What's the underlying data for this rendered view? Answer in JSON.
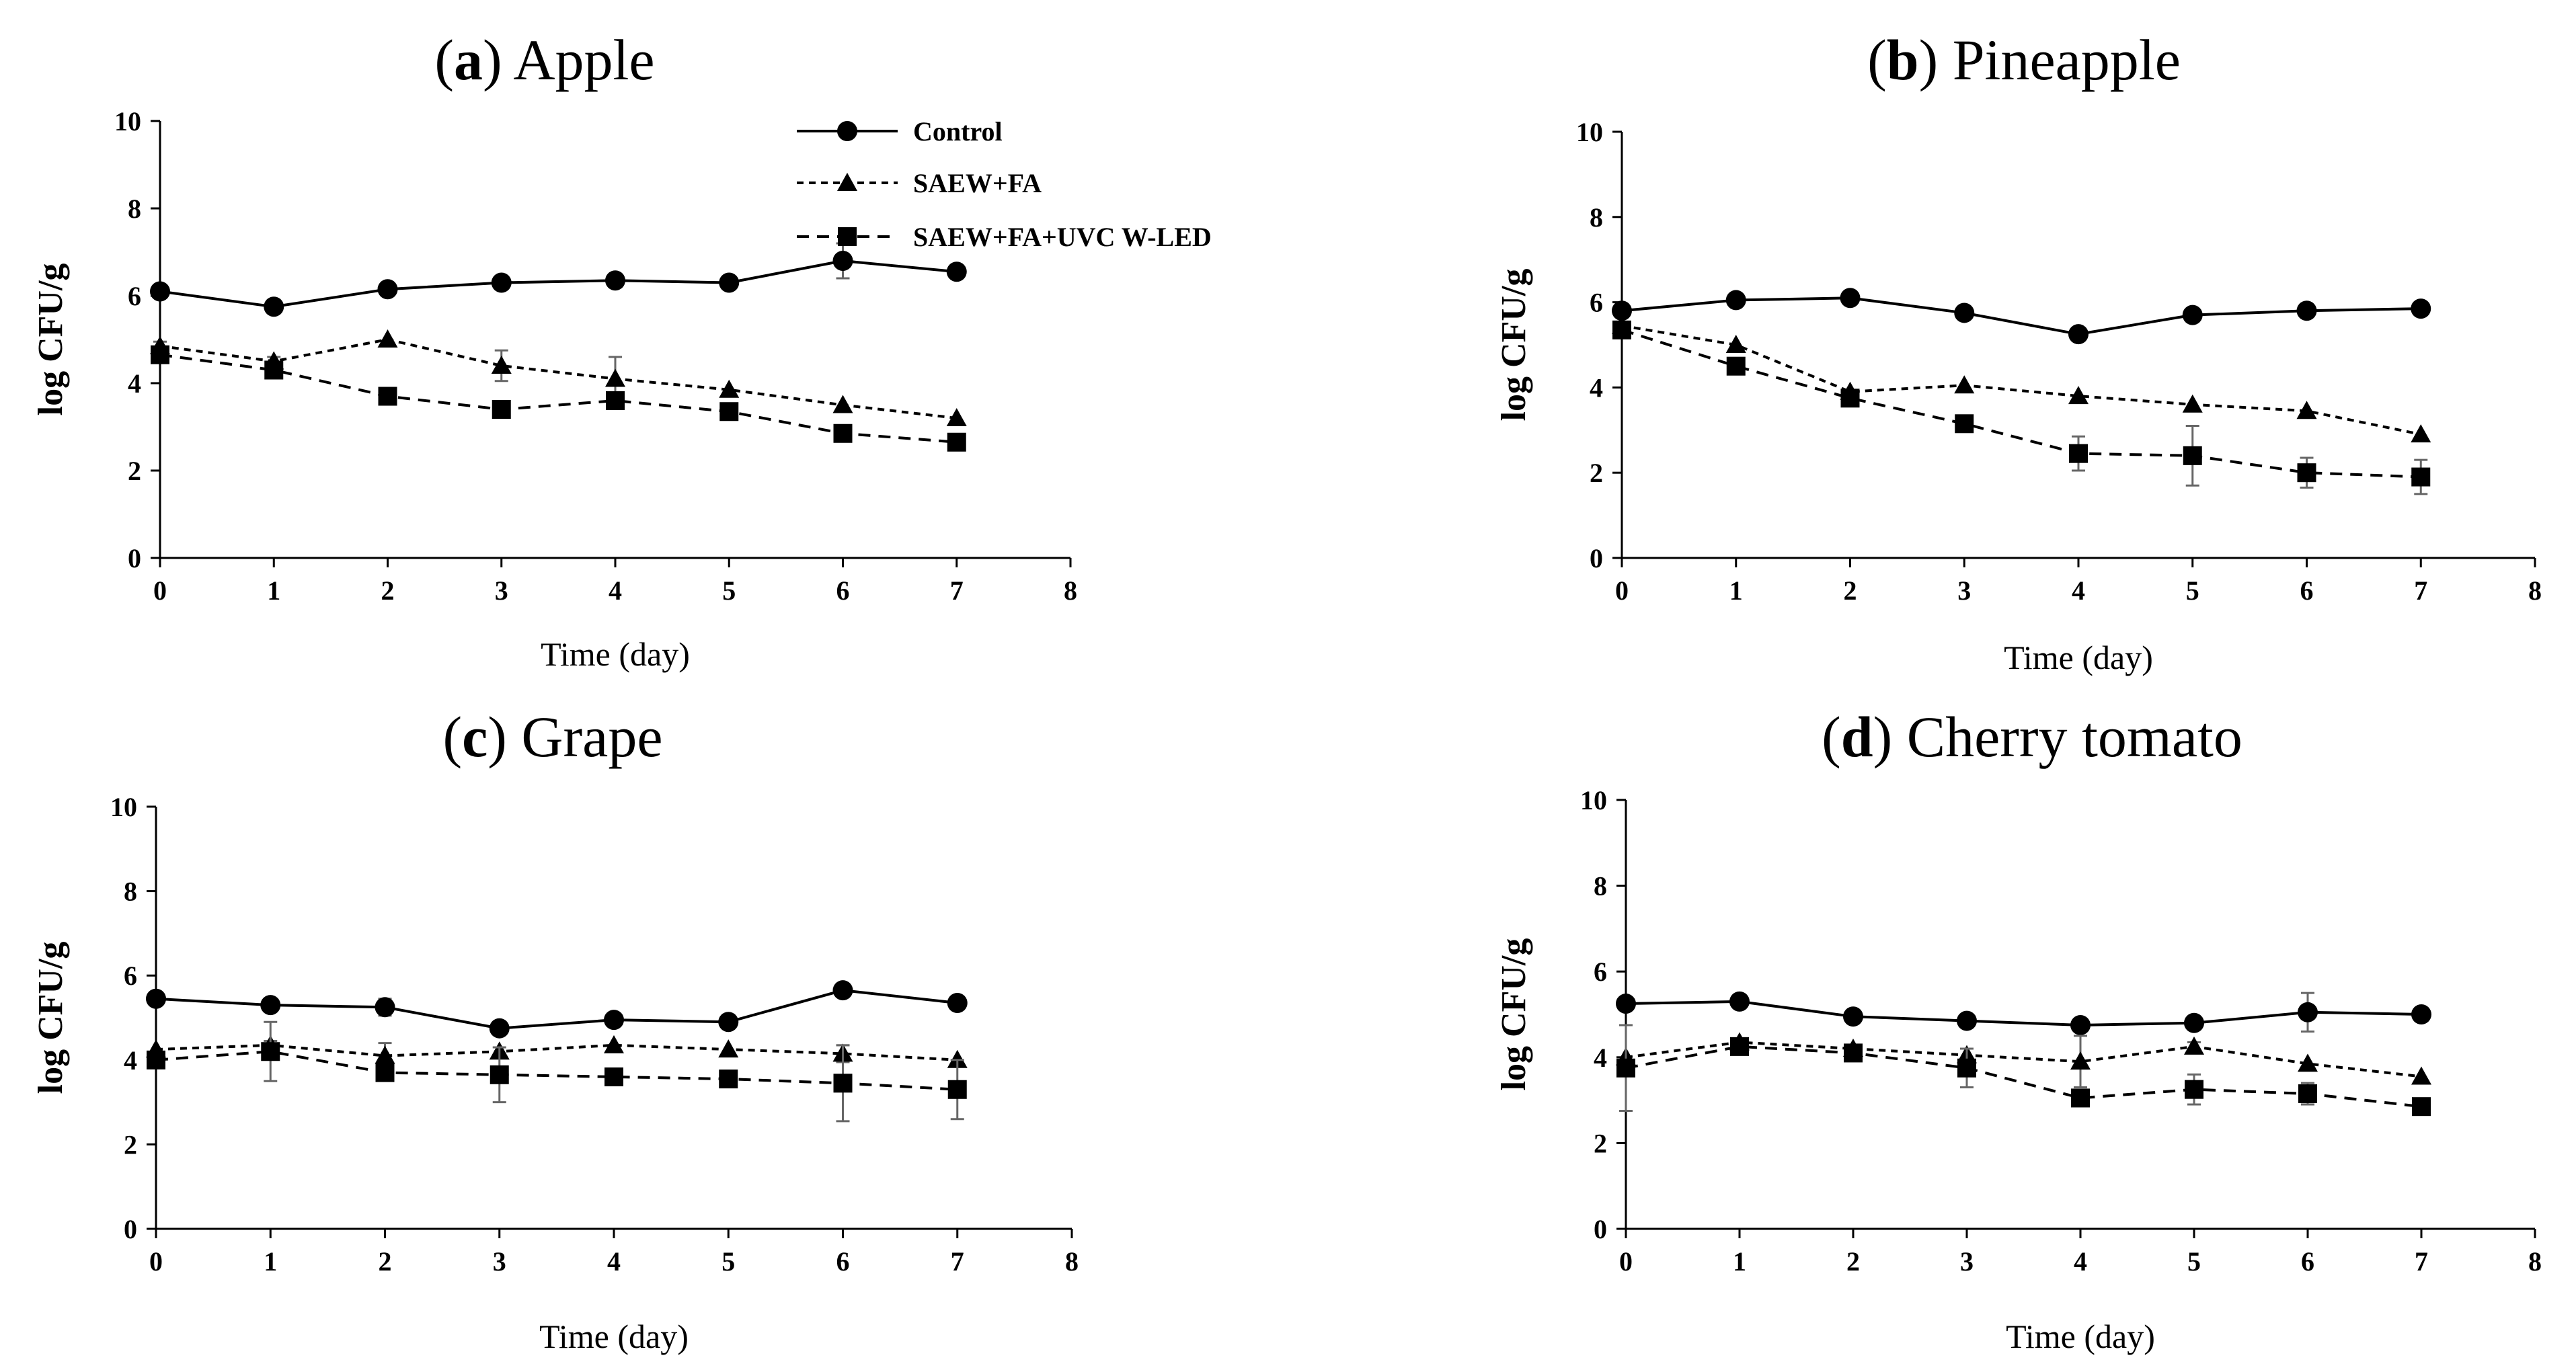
{
  "chart_data": [
    {
      "type": "line",
      "label_letter": "a",
      "title": "Apple",
      "xlabel": "Time (day)",
      "ylabel": "log CFU/g",
      "xlim": [
        0,
        8
      ],
      "ylim": [
        0,
        10
      ],
      "x_ticks": [
        "0",
        "1",
        "2",
        "3",
        "4",
        "5",
        "6",
        "7",
        "8"
      ],
      "y_ticks": [
        "0",
        "2",
        "4",
        "6",
        "8",
        "10"
      ],
      "legend_position": "top-right",
      "x": [
        0,
        1,
        2,
        3,
        4,
        5,
        6,
        7
      ],
      "series": [
        {
          "name": "Control",
          "marker": "circle",
          "line": "solid",
          "values": [
            6.1,
            5.75,
            6.15,
            6.3,
            6.35,
            6.3,
            6.8,
            6.55
          ],
          "errors": [
            0.1,
            0.05,
            0.15,
            0.05,
            0.05,
            0.05,
            0.4,
            0.05
          ]
        },
        {
          "name": "SAEW+FA",
          "marker": "triangle",
          "line": "dashed",
          "values": [
            4.85,
            4.5,
            5.0,
            4.4,
            4.1,
            3.85,
            3.5,
            3.2
          ],
          "errors": [
            0.1,
            0.1,
            0.05,
            0.35,
            0.5,
            0.05,
            0.05,
            0.05
          ]
        },
        {
          "name": "SAEW+FA+UVC W-LED",
          "marker": "square",
          "line": "dashed",
          "values": [
            4.65,
            4.3,
            3.7,
            3.4,
            3.6,
            3.35,
            2.85,
            2.65
          ],
          "errors": [
            0.1,
            0.1,
            0.05,
            0.05,
            0.1,
            0.05,
            0.05,
            0.05
          ]
        }
      ]
    },
    {
      "type": "line",
      "label_letter": "b",
      "title": "Pineapple",
      "xlabel": "Time (day)",
      "ylabel": "log CFU/g",
      "xlim": [
        0,
        8
      ],
      "ylim": [
        0,
        10
      ],
      "x_ticks": [
        "0",
        "1",
        "2",
        "3",
        "4",
        "5",
        "6",
        "7",
        "8"
      ],
      "y_ticks": [
        "0",
        "2",
        "4",
        "6",
        "8",
        "10"
      ],
      "x": [
        0,
        1,
        2,
        3,
        4,
        5,
        6,
        7
      ],
      "series": [
        {
          "name": "Control",
          "marker": "circle",
          "line": "solid",
          "values": [
            5.8,
            6.05,
            6.1,
            5.75,
            5.25,
            5.7,
            5.8,
            5.85
          ],
          "errors": [
            0.05,
            0.05,
            0.05,
            0.05,
            0.05,
            0.05,
            0.05,
            0.05
          ]
        },
        {
          "name": "SAEW+FA",
          "marker": "triangle",
          "line": "dashed",
          "values": [
            5.45,
            5.0,
            3.9,
            4.05,
            3.8,
            3.6,
            3.45,
            2.9
          ],
          "errors": [
            0.05,
            0.05,
            0.05,
            0.05,
            0.05,
            0.05,
            0.05,
            0.05
          ]
        },
        {
          "name": "SAEW+FA+UVC W-LED",
          "marker": "square",
          "line": "dashed",
          "values": [
            5.35,
            4.5,
            3.75,
            3.15,
            2.45,
            2.4,
            2.0,
            1.9
          ],
          "errors": [
            0.05,
            0.1,
            0.1,
            0.15,
            0.4,
            0.7,
            0.35,
            0.4
          ]
        }
      ]
    },
    {
      "type": "line",
      "label_letter": "c",
      "title": "Grape",
      "xlabel": "Time (day)",
      "ylabel": "log CFU/g",
      "xlim": [
        0,
        8
      ],
      "ylim": [
        0,
        10
      ],
      "x_ticks": [
        "0",
        "1",
        "2",
        "3",
        "4",
        "5",
        "6",
        "7",
        "8"
      ],
      "y_ticks": [
        "0",
        "2",
        "4",
        "6",
        "8",
        "10"
      ],
      "x": [
        0,
        1,
        2,
        3,
        4,
        5,
        6,
        7
      ],
      "series": [
        {
          "name": "Control",
          "marker": "circle",
          "line": "solid",
          "values": [
            5.45,
            5.3,
            5.25,
            4.75,
            4.95,
            4.9,
            5.65,
            5.35
          ],
          "errors": [
            0.05,
            0.05,
            0.2,
            0.05,
            0.05,
            0.15,
            0.1,
            0.15
          ]
        },
        {
          "name": "SAEW+FA",
          "marker": "triangle",
          "line": "dashed",
          "values": [
            4.25,
            4.35,
            4.1,
            4.2,
            4.35,
            4.25,
            4.15,
            4.0
          ],
          "errors": [
            0.05,
            0.1,
            0.3,
            0.05,
            0.05,
            0.05,
            0.2,
            0.05
          ]
        },
        {
          "name": "SAEW+FA+UVC W-LED",
          "marker": "square",
          "line": "dashed",
          "values": [
            4.0,
            4.2,
            3.7,
            3.65,
            3.6,
            3.55,
            3.45,
            3.3
          ],
          "errors": [
            0.05,
            0.7,
            0.05,
            0.65,
            0.05,
            0.05,
            0.9,
            0.7
          ]
        }
      ]
    },
    {
      "type": "line",
      "label_letter": "d",
      "title": "Cherry tomato",
      "xlabel": "Time (day)",
      "ylabel": "log CFU/g",
      "xlim": [
        0,
        8
      ],
      "ylim": [
        0,
        10
      ],
      "x_ticks": [
        "0",
        "1",
        "2",
        "3",
        "4",
        "5",
        "6",
        "7",
        "8"
      ],
      "y_ticks": [
        "0",
        "2",
        "4",
        "6",
        "8",
        "10"
      ],
      "x": [
        0,
        1,
        2,
        3,
        4,
        5,
        6,
        7
      ],
      "series": [
        {
          "name": "Control",
          "marker": "circle",
          "line": "solid",
          "values": [
            5.25,
            5.3,
            4.95,
            4.85,
            4.75,
            4.8,
            5.05,
            5.0
          ],
          "errors": [
            0.05,
            0.1,
            0.05,
            0.05,
            0.15,
            0.05,
            0.45,
            0.05
          ]
        },
        {
          "name": "SAEW+FA",
          "marker": "triangle",
          "line": "dashed",
          "values": [
            4.0,
            4.35,
            4.2,
            4.05,
            3.9,
            4.25,
            3.85,
            3.55
          ],
          "errors": [
            0.05,
            0.05,
            0.05,
            0.15,
            0.6,
            0.1,
            0.05,
            0.05
          ]
        },
        {
          "name": "SAEW+FA+UVC W-LED",
          "marker": "square",
          "line": "dashed",
          "values": [
            3.75,
            4.25,
            4.1,
            3.75,
            3.05,
            3.25,
            3.15,
            2.85
          ],
          "errors": [
            1.0,
            0.05,
            0.05,
            0.45,
            0.1,
            0.35,
            0.25,
            0.05
          ]
        }
      ]
    }
  ]
}
